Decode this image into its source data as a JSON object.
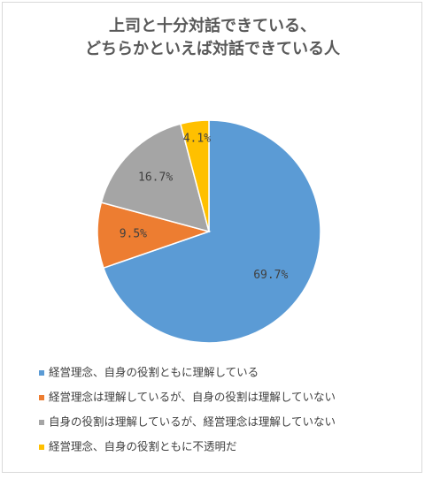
{
  "chart_data": {
    "type": "pie",
    "title": [
      "上司と十分対話できている、",
      "どちらかといえば対話できている人"
    ],
    "categories": [
      "経営理念、自身の役割ともに理解している",
      "経営理念は理解しているが、自身の役割は理解していない",
      "自身の役割は理解しているが、経営理念は理解していない",
      "経営理念、自身の役割ともに不透明だ"
    ],
    "values": [
      69.7,
      9.5,
      16.7,
      4.1
    ],
    "value_labels": [
      "69.7%",
      "9.5%",
      "16.7%",
      "4.1%"
    ],
    "colors": [
      "#5b9bd5",
      "#ed7d31",
      "#a5a5a5",
      "#ffc000"
    ]
  }
}
